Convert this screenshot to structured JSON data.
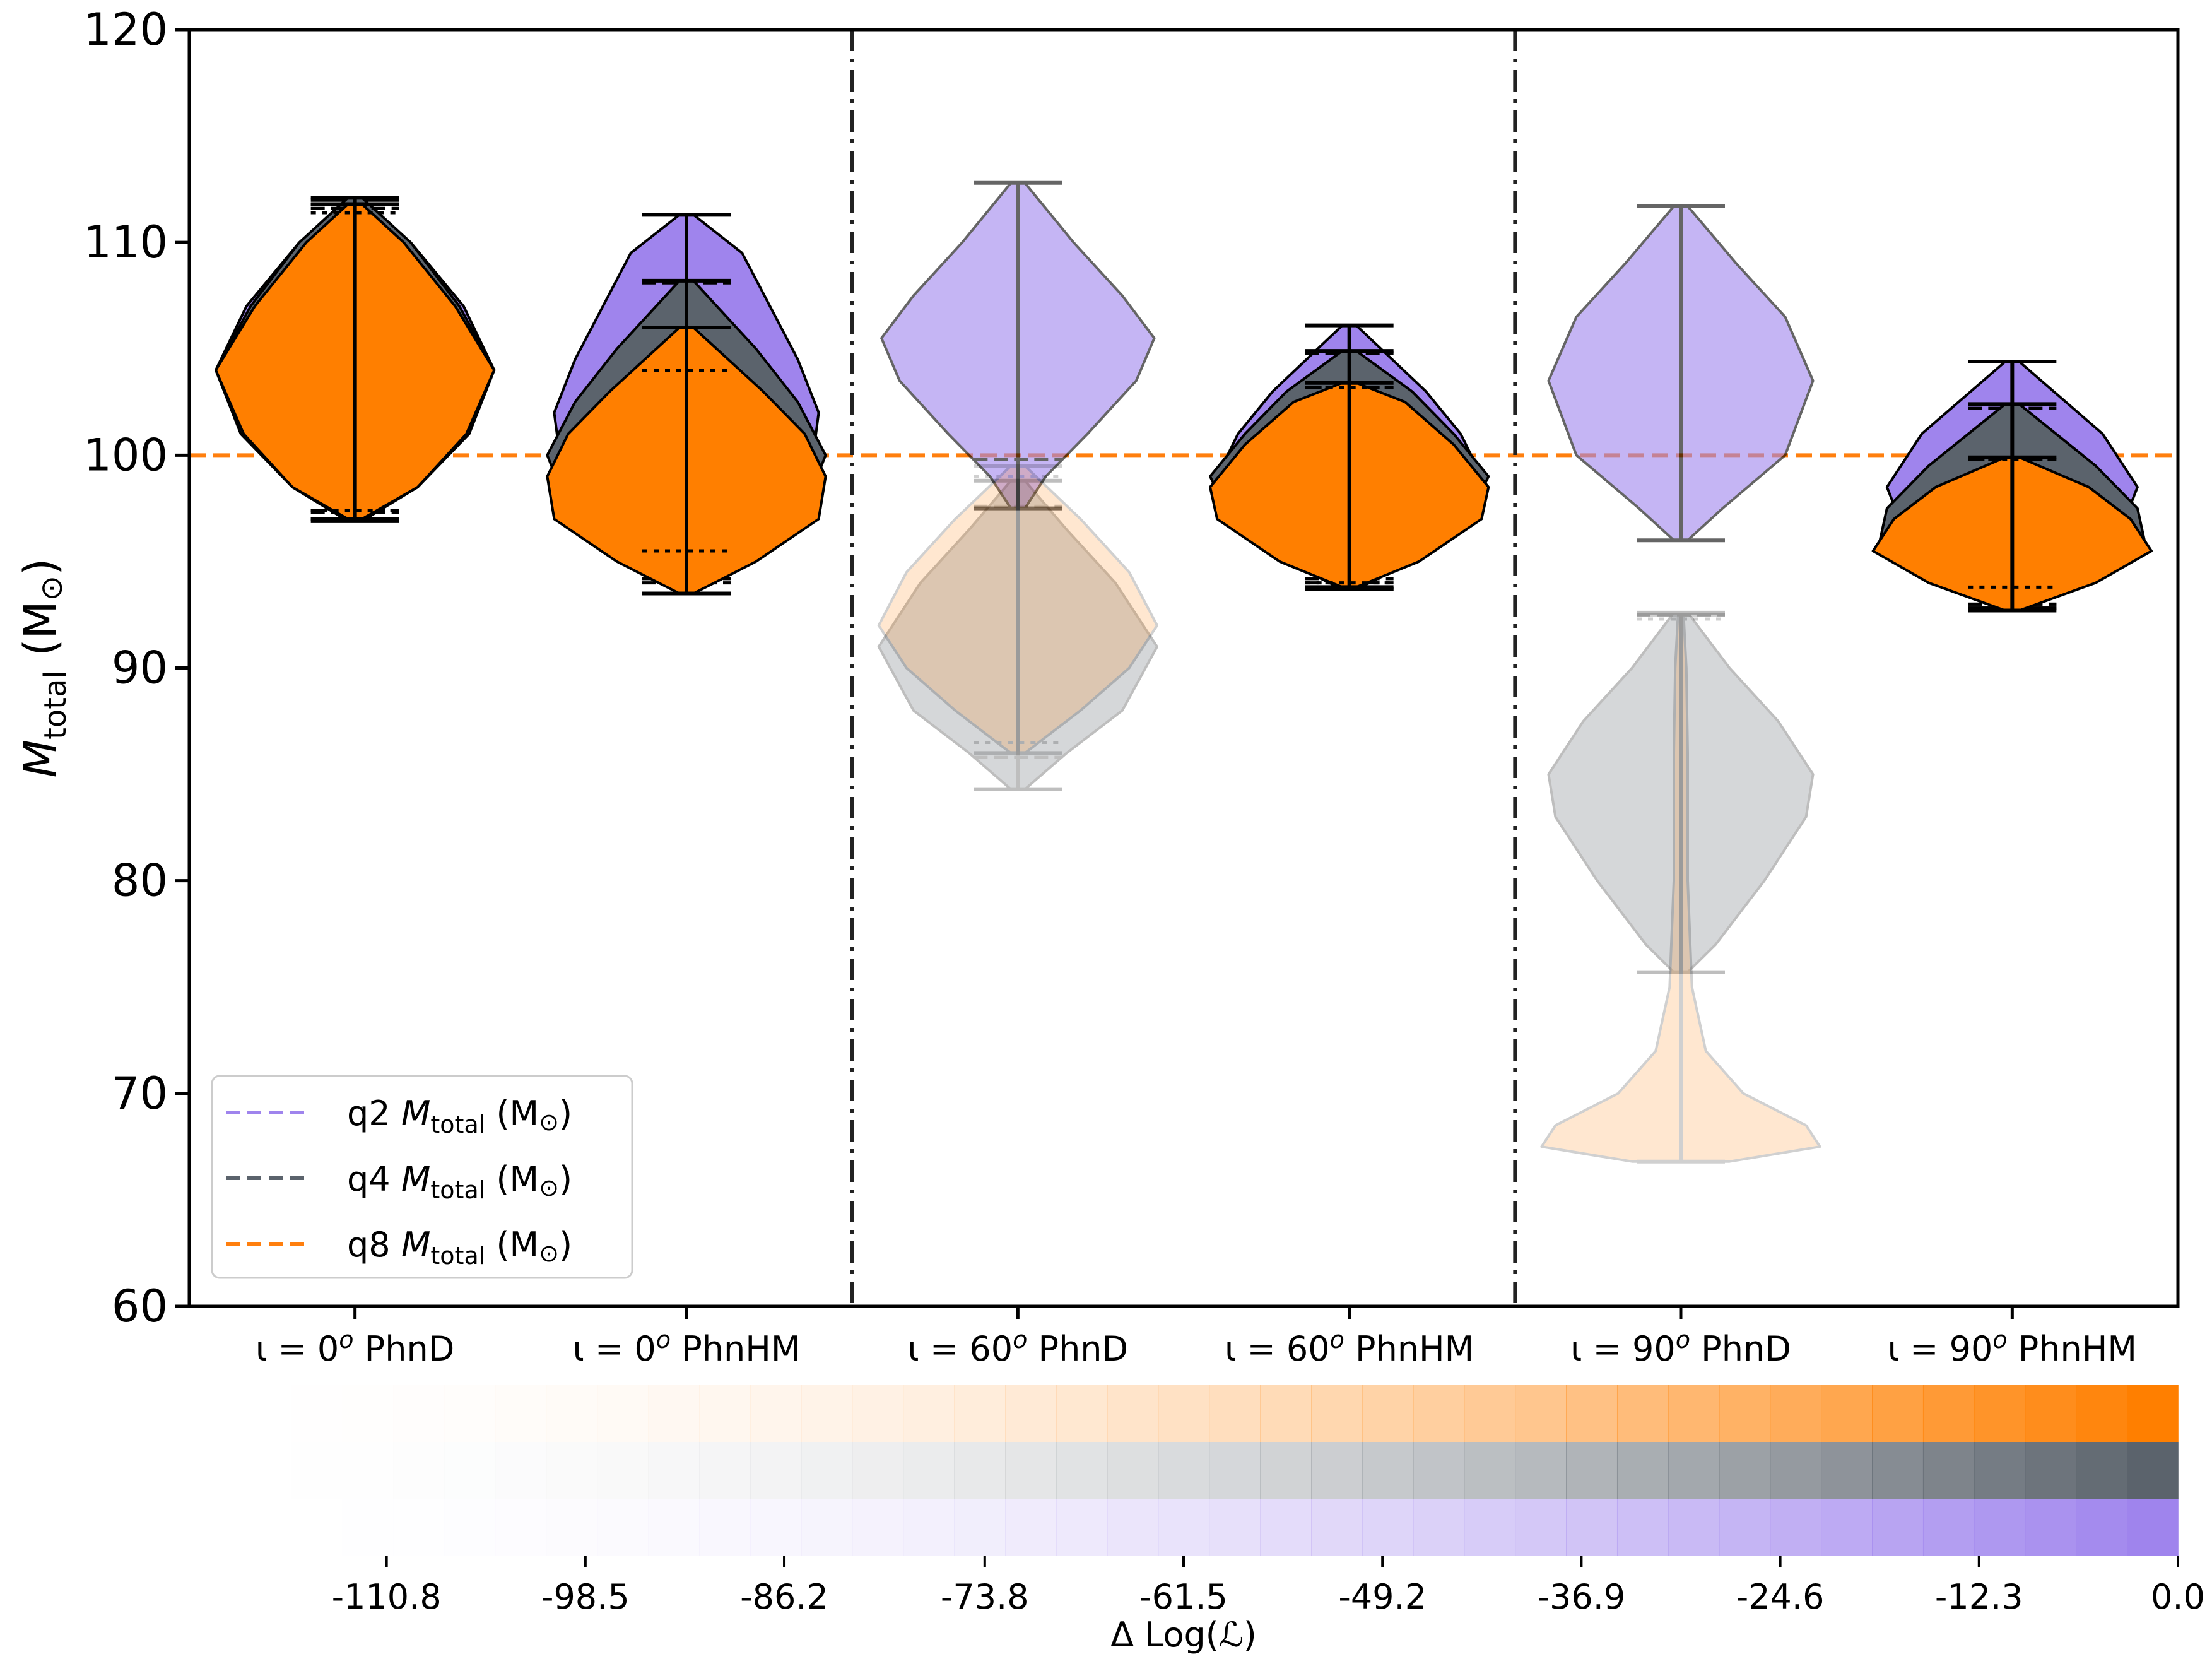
{
  "chart_data": {
    "type": "violin",
    "ylabel": "M_total (M⊙)",
    "ylabel_main": "M",
    "ylabel_sub": "total",
    "ylabel_unit_open": " (M",
    "ylabel_unit_sym": "⊙",
    "ylabel_unit_close": ")",
    "ylim": [
      60,
      120
    ],
    "yticks": [
      60,
      70,
      80,
      90,
      100,
      110,
      120
    ],
    "reference_line": {
      "value": 100,
      "color": "#ff7f0e",
      "style": "dashed"
    },
    "group_separators": [
      2.5,
      4.5
    ],
    "categories": [
      {
        "pos": 1,
        "iota": "ι = 0",
        "deg": "o",
        "model": " PhnD"
      },
      {
        "pos": 2,
        "iota": "ι = 0",
        "deg": "o",
        "model": " PhnHM"
      },
      {
        "pos": 3,
        "iota": "ι = 60",
        "deg": "o",
        "model": " PhnD"
      },
      {
        "pos": 4,
        "iota": "ι = 60",
        "deg": "o",
        "model": " PhnHM"
      },
      {
        "pos": 5,
        "iota": "ι = 90",
        "deg": "o",
        "model": " PhnD"
      },
      {
        "pos": 6,
        "iota": "ι = 90",
        "deg": "o",
        "model": " PhnHM"
      }
    ],
    "series": [
      {
        "name": "q2",
        "color": "#9f84ed",
        "edge": "#000000"
      },
      {
        "name": "q4",
        "color": "#5b636c",
        "edge": "#000000"
      },
      {
        "name": "q8",
        "color": "#ff7f00",
        "edge": "#000000"
      }
    ],
    "violins": [
      {
        "series": "q2",
        "pos": 1,
        "min": 97.0,
        "max": 112.0,
        "q5": 97.4,
        "q95": 111.8,
        "median": 104,
        "width": 0.42,
        "alpha": 1.0,
        "dist": [
          [
            97.0,
            0.05
          ],
          [
            98.5,
            0.45
          ],
          [
            101,
            0.8
          ],
          [
            104,
            1.0
          ],
          [
            107,
            0.78
          ],
          [
            110,
            0.4
          ],
          [
            112,
            0.05
          ]
        ]
      },
      {
        "series": "q4",
        "pos": 1,
        "min": 96.9,
        "max": 112.1,
        "q5": 97.3,
        "q95": 111.6,
        "median": 104,
        "width": 0.42,
        "alpha": 1.0,
        "dist": [
          [
            96.9,
            0.05
          ],
          [
            98.5,
            0.45
          ],
          [
            101,
            0.82
          ],
          [
            104,
            1.0
          ],
          [
            107,
            0.75
          ],
          [
            110,
            0.4
          ],
          [
            112.1,
            0.05
          ]
        ]
      },
      {
        "series": "q8",
        "pos": 1,
        "min": 97.0,
        "max": 111.8,
        "q5": 97.4,
        "q95": 111.4,
        "median": 104,
        "width": 0.42,
        "alpha": 1.0,
        "dist": [
          [
            97.0,
            0.05
          ],
          [
            98.5,
            0.45
          ],
          [
            101,
            0.8
          ],
          [
            104,
            1.0
          ],
          [
            107,
            0.72
          ],
          [
            110,
            0.35
          ],
          [
            111.8,
            0.05
          ]
        ]
      },
      {
        "series": "q2",
        "pos": 2,
        "min": 93.5,
        "max": 111.3,
        "q5": 94.2,
        "q95": 108.1,
        "median": 102,
        "width": 0.42,
        "alpha": 1.0,
        "dist": [
          [
            93.5,
            0.05
          ],
          [
            95,
            0.4
          ],
          [
            97,
            0.8
          ],
          [
            99.5,
            0.9
          ],
          [
            102,
            0.95
          ],
          [
            104.5,
            0.8
          ],
          [
            107,
            0.6
          ],
          [
            109.5,
            0.4
          ],
          [
            111.3,
            0.05
          ]
        ]
      },
      {
        "series": "q4",
        "pos": 2,
        "min": 93.5,
        "max": 108.2,
        "q5": 94.0,
        "q95": 106.0,
        "median": 100,
        "width": 0.42,
        "alpha": 1.0,
        "dist": [
          [
            93.5,
            0.05
          ],
          [
            95,
            0.45
          ],
          [
            97.5,
            0.85
          ],
          [
            100,
            1.0
          ],
          [
            102.5,
            0.8
          ],
          [
            105,
            0.5
          ],
          [
            108.2,
            0.05
          ]
        ]
      },
      {
        "series": "q8",
        "pos": 2,
        "min": 93.5,
        "max": 106.0,
        "q5": 95.5,
        "q95": 104.0,
        "median": 99,
        "width": 0.42,
        "alpha": 1.0,
        "dist": [
          [
            93.5,
            0.05
          ],
          [
            95,
            0.5
          ],
          [
            97,
            0.95
          ],
          [
            99,
            1.0
          ],
          [
            101,
            0.85
          ],
          [
            103,
            0.55
          ],
          [
            106,
            0.05
          ]
        ]
      },
      {
        "series": "q2",
        "pos": 3,
        "min": 97.5,
        "max": 112.8,
        "q5": 99.8,
        "q95": 112.8,
        "median": 105.5,
        "width": 0.42,
        "alpha": 0.6,
        "dist": [
          [
            97.5,
            0.05
          ],
          [
            99,
            0.2
          ],
          [
            101,
            0.5
          ],
          [
            103.5,
            0.85
          ],
          [
            105.5,
            0.98
          ],
          [
            107.5,
            0.75
          ],
          [
            110,
            0.4
          ],
          [
            112.8,
            0.05
          ]
        ]
      },
      {
        "series": "q4",
        "pos": 3,
        "min": 84.3,
        "max": 98.8,
        "q5": 85.8,
        "q95": 97.6,
        "median": 91,
        "width": 0.42,
        "alpha": 0.25,
        "dist": [
          [
            84.3,
            0.05
          ],
          [
            86,
            0.35
          ],
          [
            88,
            0.75
          ],
          [
            91,
            1.0
          ],
          [
            94,
            0.7
          ],
          [
            96.5,
            0.35
          ],
          [
            98.8,
            0.05
          ]
        ]
      },
      {
        "series": "q8",
        "pos": 3,
        "min": 86.0,
        "max": 99.5,
        "q5": 86.5,
        "q95": 99.0,
        "median": 92,
        "width": 0.42,
        "alpha": 0.18,
        "dist": [
          [
            86,
            0.05
          ],
          [
            88,
            0.45
          ],
          [
            90,
            0.8
          ],
          [
            92,
            1.0
          ],
          [
            94.5,
            0.8
          ],
          [
            97,
            0.45
          ],
          [
            99.5,
            0.05
          ]
        ]
      },
      {
        "series": "q2",
        "pos": 4,
        "min": 93.7,
        "max": 106.1,
        "q5": 94.2,
        "q95": 104.8,
        "median": 100,
        "width": 0.42,
        "alpha": 1.0,
        "dist": [
          [
            93.7,
            0.05
          ],
          [
            95,
            0.45
          ],
          [
            97,
            0.8
          ],
          [
            99,
            0.95
          ],
          [
            101,
            0.8
          ],
          [
            103,
            0.55
          ],
          [
            106.1,
            0.05
          ]
        ]
      },
      {
        "series": "q4",
        "pos": 4,
        "min": 93.7,
        "max": 104.9,
        "q5": 94.0,
        "q95": 103.2,
        "median": 99,
        "width": 0.42,
        "alpha": 1.0,
        "dist": [
          [
            93.7,
            0.05
          ],
          [
            95,
            0.45
          ],
          [
            97,
            0.85
          ],
          [
            99,
            1.0
          ],
          [
            101,
            0.75
          ],
          [
            103,
            0.45
          ],
          [
            104.9,
            0.05
          ]
        ]
      },
      {
        "series": "q8",
        "pos": 4,
        "min": 93.8,
        "max": 103.4,
        "q5": 94.0,
        "q95": 103.2,
        "median": 98.5,
        "width": 0.42,
        "alpha": 1.0,
        "dist": [
          [
            93.8,
            0.05
          ],
          [
            95,
            0.5
          ],
          [
            97,
            0.95
          ],
          [
            98.5,
            1.0
          ],
          [
            100.5,
            0.75
          ],
          [
            102.5,
            0.4
          ],
          [
            103.4,
            0.05
          ]
        ]
      },
      {
        "series": "q2",
        "pos": 5,
        "min": 96.0,
        "max": 111.7,
        "q5": 96.0,
        "q95": 111.7,
        "median": 103.5,
        "width": 0.42,
        "alpha": 0.6,
        "dist": [
          [
            96,
            0.05
          ],
          [
            97.5,
            0.3
          ],
          [
            100,
            0.75
          ],
          [
            103.5,
            0.95
          ],
          [
            106.5,
            0.75
          ],
          [
            109,
            0.4
          ],
          [
            111.7,
            0.05
          ]
        ]
      },
      {
        "series": "q4",
        "pos": 5,
        "min": 75.7,
        "max": 92.6,
        "q5": 75.7,
        "q95": 92.5,
        "median": 84,
        "width": 0.42,
        "alpha": 0.25,
        "dist": [
          [
            75.7,
            0.05
          ],
          [
            77,
            0.25
          ],
          [
            80,
            0.6
          ],
          [
            83,
            0.9
          ],
          [
            85,
            0.95
          ],
          [
            87.5,
            0.7
          ],
          [
            90,
            0.35
          ],
          [
            92.6,
            0.05
          ]
        ]
      },
      {
        "series": "q8",
        "pos": 5,
        "min": 66.8,
        "max": 92.5,
        "q5": 66.8,
        "q95": 92.3,
        "median": 68,
        "width": 0.42,
        "alpha": 0.18,
        "dist": [
          [
            66.8,
            0.35
          ],
          [
            67.5,
            1.0
          ],
          [
            68.5,
            0.9
          ],
          [
            70,
            0.45
          ],
          [
            72,
            0.18
          ],
          [
            75,
            0.08
          ],
          [
            80,
            0.05
          ],
          [
            86,
            0.05
          ],
          [
            90,
            0.04
          ],
          [
            92.5,
            0.02
          ]
        ]
      },
      {
        "series": "q2",
        "pos": 6,
        "min": 92.8,
        "max": 104.4,
        "q5": 93.0,
        "q95": 102.2,
        "median": 98.5,
        "width": 0.42,
        "alpha": 1.0,
        "dist": [
          [
            92.8,
            0.05
          ],
          [
            94,
            0.4
          ],
          [
            96,
            0.75
          ],
          [
            98.5,
            0.9
          ],
          [
            101,
            0.65
          ],
          [
            104.4,
            0.05
          ]
        ]
      },
      {
        "series": "q4",
        "pos": 6,
        "min": 92.8,
        "max": 102.4,
        "q5": 93.0,
        "q95": 99.8,
        "median": 97.5,
        "width": 0.42,
        "alpha": 1.0,
        "dist": [
          [
            92.8,
            0.05
          ],
          [
            94,
            0.5
          ],
          [
            96,
            0.95
          ],
          [
            97.5,
            0.9
          ],
          [
            99.5,
            0.6
          ],
          [
            102.4,
            0.05
          ]
        ]
      },
      {
        "series": "q8",
        "pos": 6,
        "min": 92.7,
        "max": 99.9,
        "q5": 93.8,
        "q95": 99.8,
        "median": 96,
        "width": 0.42,
        "alpha": 1.0,
        "dist": [
          [
            92.7,
            0.05
          ],
          [
            94,
            0.6
          ],
          [
            95.5,
            1.0
          ],
          [
            97,
            0.85
          ],
          [
            98.5,
            0.55
          ],
          [
            99.9,
            0.05
          ]
        ]
      }
    ],
    "legend": {
      "placement": "lower-left",
      "entries": [
        {
          "series": "q2",
          "label_pre": "q2 ",
          "label_var": "M",
          "label_sub": "total",
          "label_unit_open": " (M",
          "label_unit_sym": "⊙",
          "label_unit_close": ")",
          "color": "#9f84ed"
        },
        {
          "series": "q4",
          "label_pre": "q4 ",
          "label_var": "M",
          "label_sub": "total",
          "label_unit_open": " (M",
          "label_unit_sym": "⊙",
          "label_unit_close": ")",
          "color": "#5b636c"
        },
        {
          "series": "q8",
          "label_pre": "q8 ",
          "label_var": "M",
          "label_sub": "total",
          "label_unit_open": " (M",
          "label_unit_sym": "⊙",
          "label_unit_close": ")",
          "color": "#ff7f0e"
        }
      ]
    },
    "colorbar": {
      "label": "Δ Log(ℒ)",
      "range": [
        -123.0,
        0.0
      ],
      "ticks": [
        -110.8,
        -98.5,
        -86.2,
        -73.8,
        -61.5,
        -49.2,
        -36.9,
        -24.6,
        -12.3,
        0.0
      ],
      "tick_labels": [
        "-110.8",
        "-98.5",
        "-86.2",
        "-73.8",
        "-61.5",
        "-49.2",
        "-36.9",
        "-24.6",
        "-12.3",
        "0.0"
      ],
      "steps": 39,
      "rows": [
        {
          "series": "q8",
          "color": "#ff7f00"
        },
        {
          "series": "q4",
          "color": "#5b636c"
        },
        {
          "series": "q2",
          "color": "#9f84ed"
        }
      ]
    }
  }
}
